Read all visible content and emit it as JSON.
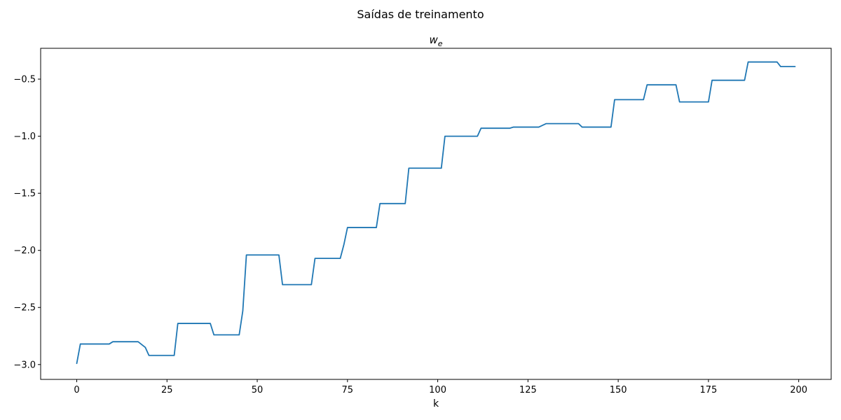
{
  "chart_data": {
    "type": "line",
    "suptitle": "Saídas de treinamento",
    "title_base": "w",
    "title_sub": "e",
    "xlabel": "k",
    "ylabel": "",
    "xlim": [
      -10,
      209
    ],
    "ylim": [
      -3.13,
      -0.23
    ],
    "x_ticks": [
      0,
      25,
      50,
      75,
      100,
      125,
      150,
      175,
      200
    ],
    "x_tick_labels": [
      "0",
      "25",
      "50",
      "75",
      "100",
      "125",
      "150",
      "175",
      "200"
    ],
    "y_ticks": [
      -3.0,
      -2.5,
      -2.0,
      -1.5,
      -1.0,
      -0.5
    ],
    "y_tick_labels": [
      "−3.0",
      "−2.5",
      "−2.0",
      "−1.5",
      "−1.0",
      "−0.5"
    ],
    "grid": false,
    "color": "#1f77b4",
    "series": [
      {
        "points": [
          [
            0,
            -2.99
          ],
          [
            1,
            -2.82
          ],
          [
            9,
            -2.82
          ],
          [
            10,
            -2.8
          ],
          [
            17,
            -2.8
          ],
          [
            19,
            -2.85
          ],
          [
            20,
            -2.92
          ],
          [
            27,
            -2.92
          ],
          [
            28,
            -2.64
          ],
          [
            37,
            -2.64
          ],
          [
            38,
            -2.74
          ],
          [
            45,
            -2.74
          ],
          [
            46,
            -2.53
          ],
          [
            47,
            -2.04
          ],
          [
            56,
            -2.04
          ],
          [
            57,
            -2.3
          ],
          [
            65,
            -2.3
          ],
          [
            66,
            -2.07
          ],
          [
            73,
            -2.07
          ],
          [
            74,
            -1.95
          ],
          [
            75,
            -1.8
          ],
          [
            83,
            -1.8
          ],
          [
            84,
            -1.59
          ],
          [
            91,
            -1.59
          ],
          [
            92,
            -1.28
          ],
          [
            101,
            -1.28
          ],
          [
            102,
            -1.0
          ],
          [
            111,
            -1.0
          ],
          [
            112,
            -0.93
          ],
          [
            120,
            -0.93
          ],
          [
            121,
            -0.92
          ],
          [
            128,
            -0.92
          ],
          [
            130,
            -0.89
          ],
          [
            139,
            -0.89
          ],
          [
            140,
            -0.92
          ],
          [
            148,
            -0.92
          ],
          [
            149,
            -0.68
          ],
          [
            157,
            -0.68
          ],
          [
            158,
            -0.55
          ],
          [
            166,
            -0.55
          ],
          [
            167,
            -0.7
          ],
          [
            175,
            -0.7
          ],
          [
            176,
            -0.51
          ],
          [
            185,
            -0.51
          ],
          [
            186,
            -0.35
          ],
          [
            194,
            -0.35
          ],
          [
            195,
            -0.39
          ],
          [
            199,
            -0.39
          ]
        ]
      }
    ]
  }
}
